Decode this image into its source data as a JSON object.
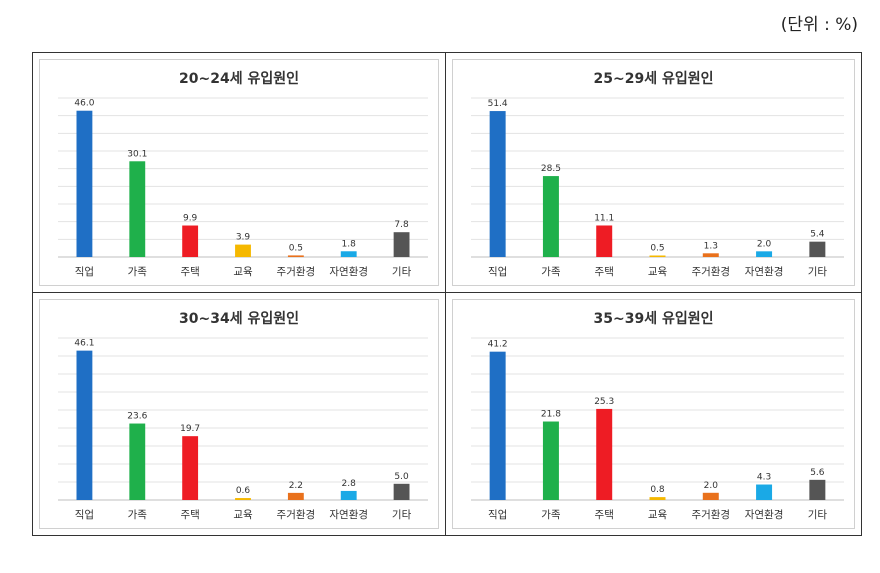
{
  "unit_label": "(단위 : %)",
  "chart_data": [
    {
      "type": "bar",
      "title": "20~24세 유입원인",
      "categories": [
        "직업",
        "가족",
        "주택",
        "교육",
        "주거환경",
        "자연환경",
        "기타"
      ],
      "values": [
        46.0,
        30.1,
        9.9,
        3.9,
        0.5,
        1.8,
        7.8
      ],
      "value_labels": [
        "46.0",
        "30.1",
        "9.9",
        "3.9",
        "0.5",
        "1.8",
        "7.8"
      ],
      "colors": [
        "#1f6fc5",
        "#1fb04b",
        "#ee1c24",
        "#f5b800",
        "#e9711c",
        "#1aa9e6",
        "#555555"
      ],
      "ylim": [
        0,
        50
      ],
      "grid": true,
      "legend": "none"
    },
    {
      "type": "bar",
      "title": "25~29세 유입원인",
      "categories": [
        "직업",
        "가족",
        "주택",
        "교육",
        "주거환경",
        "자연환경",
        "기타"
      ],
      "values": [
        51.4,
        28.5,
        11.1,
        0.5,
        1.3,
        2.0,
        5.4
      ],
      "value_labels": [
        "51.4",
        "28.5",
        "11.1",
        "0.5",
        "1.3",
        "2.0",
        "5.4"
      ],
      "colors": [
        "#1f6fc5",
        "#1fb04b",
        "#ee1c24",
        "#f5b800",
        "#e9711c",
        "#1aa9e6",
        "#555555"
      ],
      "ylim": [
        0,
        56
      ],
      "grid": true,
      "legend": "none"
    },
    {
      "type": "bar",
      "title": "30~34세 유입원인",
      "categories": [
        "직업",
        "가족",
        "주택",
        "교육",
        "주거환경",
        "자연환경",
        "기타"
      ],
      "values": [
        46.1,
        23.6,
        19.7,
        0.6,
        2.2,
        2.8,
        5.0
      ],
      "value_labels": [
        "46.1",
        "23.6",
        "19.7",
        "0.6",
        "2.2",
        "2.8",
        "5.0"
      ],
      "colors": [
        "#1f6fc5",
        "#1fb04b",
        "#ee1c24",
        "#f5b800",
        "#e9711c",
        "#1aa9e6",
        "#555555"
      ],
      "ylim": [
        0,
        50
      ],
      "grid": true,
      "legend": "none"
    },
    {
      "type": "bar",
      "title": "35~39세 유입원인",
      "categories": [
        "직업",
        "가족",
        "주택",
        "교육",
        "주거환경",
        "자연환경",
        "기타"
      ],
      "values": [
        41.2,
        21.8,
        25.3,
        0.8,
        2.0,
        4.3,
        5.6
      ],
      "value_labels": [
        "41.2",
        "21.8",
        "25.3",
        "0.8",
        "2.0",
        "4.3",
        "5.6"
      ],
      "colors": [
        "#1f6fc5",
        "#1fb04b",
        "#ee1c24",
        "#f5b800",
        "#e9711c",
        "#1aa9e6",
        "#555555"
      ],
      "ylim": [
        0,
        45
      ],
      "grid": true,
      "legend": "none"
    }
  ]
}
